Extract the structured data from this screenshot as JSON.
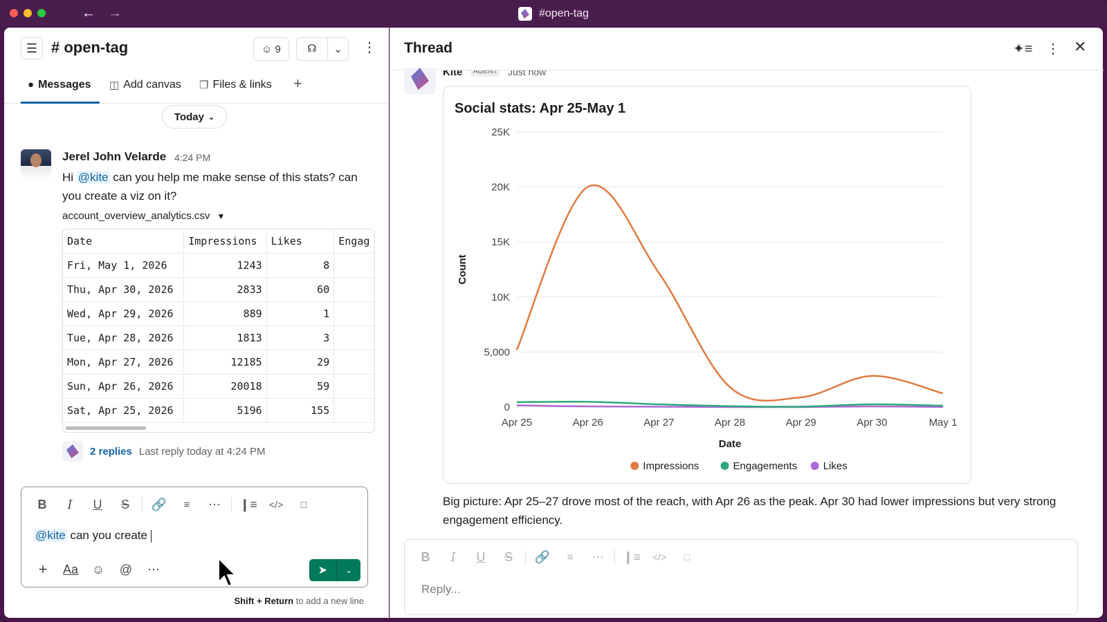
{
  "window": {
    "title": "#open-tag"
  },
  "colors": {
    "accent": "#1264a3",
    "send": "#007a5a",
    "impressions": "#e07a3f",
    "engagements": "#2ea97b",
    "likes": "#b068d8"
  },
  "channel": {
    "title": "# open-tag",
    "members_count": "9",
    "tabs": [
      {
        "label": "Messages",
        "icon": "message-bubble-icon"
      },
      {
        "label": "Add canvas",
        "icon": "canvas-icon"
      },
      {
        "label": "Files & links",
        "icon": "files-icon"
      }
    ],
    "date_divider": "Today"
  },
  "message": {
    "author": "Jerel John Velarde",
    "time": "4:24 PM",
    "text_hi": "Hi",
    "mention": "@kite",
    "text_rest": " can you help me make sense of this stats? can you create a viz on it?",
    "file_name": "account_overview_analytics.csv",
    "table": {
      "headers": [
        "Date",
        "Impressions",
        "Likes",
        "Engag"
      ],
      "rows": [
        [
          "Fri, May 1, 2026",
          "1243",
          "8",
          ""
        ],
        [
          "Thu, Apr 30, 2026",
          "2833",
          "60",
          ""
        ],
        [
          "Wed, Apr 29, 2026",
          "889",
          "1",
          ""
        ],
        [
          "Tue, Apr 28, 2026",
          "1813",
          "3",
          ""
        ],
        [
          "Mon, Apr 27, 2026",
          "12185",
          "29",
          ""
        ],
        [
          "Sun, Apr 26, 2026",
          "20018",
          "59",
          ""
        ],
        [
          "Sat, Apr 25, 2026",
          "5196",
          "155",
          ""
        ]
      ]
    },
    "replies_label": "2 replies",
    "last_reply": "Last reply today at 4:24 PM"
  },
  "composer": {
    "mention": "@kite",
    "text": " can you create ",
    "hint_bold": "Shift + Return",
    "hint_rest": " to add a new line"
  },
  "thread": {
    "title": "Thread",
    "author": "Kite",
    "badge": "AGENT",
    "time": "Just now",
    "summary": "Big picture: Apr 25–27 drove most of the reach, with Apr 26 as the peak. Apr 30 had lower impressions but very strong engagement efficiency.",
    "reply_placeholder": "Reply..."
  },
  "chart_data": {
    "type": "line",
    "title": "Social stats: Apr 25-May 1",
    "xlabel": "Date",
    "ylabel": "Count",
    "categories": [
      "Apr 25",
      "Apr 26",
      "Apr 27",
      "Apr 28",
      "Apr 29",
      "Apr 30",
      "May 1"
    ],
    "ylim": [
      0,
      25000
    ],
    "yticks": [
      0,
      5000,
      10000,
      15000,
      20000,
      25000
    ],
    "ytick_labels": [
      "0",
      "5,000",
      "10K",
      "15K",
      "20K",
      "25K"
    ],
    "grid": true,
    "legend_position": "bottom",
    "series": [
      {
        "name": "Impressions",
        "color": "#e07a3f",
        "values": [
          5196,
          20018,
          12185,
          1813,
          889,
          2833,
          1243
        ]
      },
      {
        "name": "Engagements",
        "color": "#2ea97b",
        "values": [
          450,
          480,
          250,
          80,
          40,
          250,
          120
        ]
      },
      {
        "name": "Likes",
        "color": "#b068d8",
        "values": [
          155,
          59,
          29,
          3,
          1,
          60,
          8
        ]
      }
    ]
  }
}
